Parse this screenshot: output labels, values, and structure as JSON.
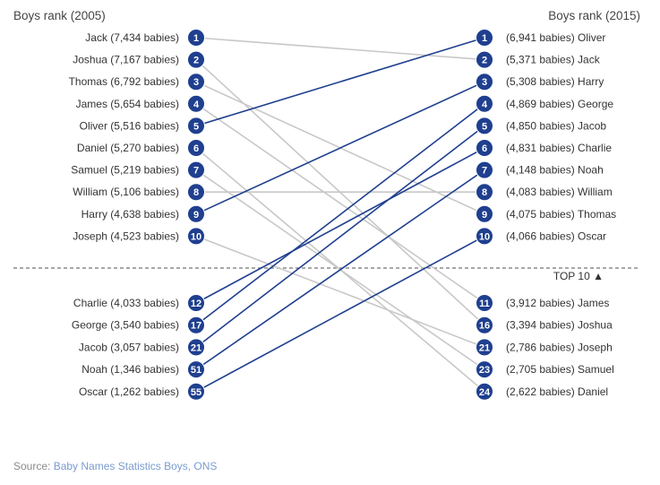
{
  "chart_data": {
    "type": "slope",
    "left_title": "Boys rank (2005)",
    "right_title": "Boys rank (2015)",
    "divider_label": "TOP 10 ▲",
    "left": [
      {
        "name": "Jack",
        "babies": "7,434",
        "rank": 1
      },
      {
        "name": "Joshua",
        "babies": "7,167",
        "rank": 2
      },
      {
        "name": "Thomas",
        "babies": "6,792",
        "rank": 3
      },
      {
        "name": "James",
        "babies": "5,654",
        "rank": 4
      },
      {
        "name": "Oliver",
        "babies": "5,516",
        "rank": 5
      },
      {
        "name": "Daniel",
        "babies": "5,270",
        "rank": 6
      },
      {
        "name": "Samuel",
        "babies": "5,219",
        "rank": 7
      },
      {
        "name": "William",
        "babies": "5,106",
        "rank": 8
      },
      {
        "name": "Harry",
        "babies": "4,638",
        "rank": 9
      },
      {
        "name": "Joseph",
        "babies": "4,523",
        "rank": 10
      },
      {
        "name": "Charlie",
        "babies": "4,033",
        "rank": 12
      },
      {
        "name": "George",
        "babies": "3,540",
        "rank": 17
      },
      {
        "name": "Jacob",
        "babies": "3,057",
        "rank": 21
      },
      {
        "name": "Noah",
        "babies": "1,346",
        "rank": 51
      },
      {
        "name": "Oscar",
        "babies": "1,262",
        "rank": 55
      }
    ],
    "right": [
      {
        "name": "Oliver",
        "babies": "6,941",
        "rank": 1
      },
      {
        "name": "Jack",
        "babies": "5,371",
        "rank": 2
      },
      {
        "name": "Harry",
        "babies": "5,308",
        "rank": 3
      },
      {
        "name": "George",
        "babies": "4,869",
        "rank": 4
      },
      {
        "name": "Jacob",
        "babies": "4,850",
        "rank": 5
      },
      {
        "name": "Charlie",
        "babies": "4,831",
        "rank": 6
      },
      {
        "name": "Noah",
        "babies": "4,148",
        "rank": 7
      },
      {
        "name": "William",
        "babies": "4,083",
        "rank": 8
      },
      {
        "name": "Thomas",
        "babies": "4,075",
        "rank": 9
      },
      {
        "name": "Oscar",
        "babies": "4,066",
        "rank": 10
      },
      {
        "name": "James",
        "babies": "3,912",
        "rank": 11
      },
      {
        "name": "Joshua",
        "babies": "3,394",
        "rank": 16
      },
      {
        "name": "Joseph",
        "babies": "2,786",
        "rank": 21
      },
      {
        "name": "Samuel",
        "babies": "2,705",
        "rank": 23
      },
      {
        "name": "Daniel",
        "babies": "2,622",
        "rank": 24
      }
    ],
    "colors": {
      "badge": "#1f3f8f",
      "line_up": "#1f3f8f",
      "line_down": "#c8c8c8",
      "divider": "#8c8c8c"
    }
  },
  "source": {
    "prefix": "Source: ",
    "link_text": "Baby Names Statistics Boys, ONS"
  }
}
